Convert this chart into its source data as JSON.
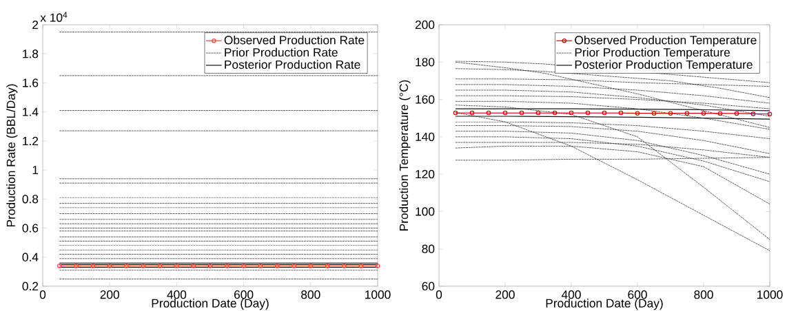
{
  "chart_data": [
    {
      "type": "line",
      "xlabel": "Production Date (Day)",
      "ylabel": "Production Rate (BBL/Day)",
      "annotations": [
        "x 10$^{4}$"
      ],
      "legend": "top right",
      "xlim": [
        0,
        1000
      ],
      "xticks": [
        0,
        200,
        400,
        600,
        800,
        1000
      ],
      "ylim": [
        0.2,
        2
      ],
      "yticks": [
        0.2,
        0.4,
        0.6,
        0.8,
        1,
        1.2,
        1.4,
        1.6,
        1.8,
        2
      ],
      "x": [
        50,
        100,
        150,
        200,
        250,
        300,
        350,
        400,
        450,
        500,
        550,
        600,
        650,
        700,
        750,
        800,
        850,
        900,
        950,
        1000
      ],
      "series": [
        {
          "name": "Observed Production Rate",
          "color": "#ff4040",
          "line_style": "solid",
          "marker": "circle",
          "values": [
            0.34,
            0.34,
            0.34,
            0.34,
            0.34,
            0.34,
            0.34,
            0.34,
            0.34,
            0.34,
            0.34,
            0.34,
            0.34,
            0.34,
            0.34,
            0.34,
            0.34,
            0.34,
            0.34,
            0.34
          ]
        },
        {
          "name": "Prior Production Rate",
          "color": "#333333",
          "line_style": "dotted",
          "marker": "none",
          "x": [
            50,
            1000
          ],
          "values": [
            1.95,
            1.95
          ]
        },
        {
          "color": "#333333",
          "line_style": "dotted",
          "marker": "none",
          "x": [
            50,
            1000
          ],
          "values": [
            1.65,
            1.65
          ]
        },
        {
          "color": "#333333",
          "line_style": "dotted",
          "marker": "none",
          "x": [
            50,
            1000
          ],
          "values": [
            1.41,
            1.41
          ]
        },
        {
          "color": "#333333",
          "line_style": "dotted",
          "marker": "none",
          "x": [
            50,
            1000
          ],
          "values": [
            1.27,
            1.27
          ]
        },
        {
          "color": "#333333",
          "line_style": "dotted",
          "marker": "none",
          "x": [
            50,
            1000
          ],
          "values": [
            0.94,
            0.94
          ]
        },
        {
          "color": "#333333",
          "line_style": "dotted",
          "marker": "none",
          "x": [
            50,
            1000
          ],
          "values": [
            0.91,
            0.91
          ]
        },
        {
          "color": "#333333",
          "line_style": "dotted",
          "marker": "none",
          "x": [
            50,
            1000
          ],
          "values": [
            0.81,
            0.81
          ]
        },
        {
          "color": "#333333",
          "line_style": "dotted",
          "marker": "none",
          "x": [
            50,
            1000
          ],
          "values": [
            0.77,
            0.77
          ]
        },
        {
          "color": "#333333",
          "line_style": "dotted",
          "marker": "none",
          "x": [
            50,
            1000
          ],
          "values": [
            0.74,
            0.74
          ]
        },
        {
          "color": "#333333",
          "line_style": "dotted",
          "marker": "none",
          "x": [
            50,
            1000
          ],
          "values": [
            0.7,
            0.7
          ]
        },
        {
          "color": "#333333",
          "line_style": "dotted",
          "marker": "none",
          "x": [
            50,
            1000
          ],
          "values": [
            0.66,
            0.66
          ]
        },
        {
          "color": "#333333",
          "line_style": "dotted",
          "marker": "none",
          "x": [
            50,
            1000
          ],
          "values": [
            0.63,
            0.63
          ]
        },
        {
          "color": "#333333",
          "line_style": "dotted",
          "marker": "none",
          "x": [
            50,
            1000
          ],
          "values": [
            0.6,
            0.6
          ]
        },
        {
          "color": "#333333",
          "line_style": "dotted",
          "marker": "none",
          "x": [
            50,
            1000
          ],
          "values": [
            0.58,
            0.58
          ]
        },
        {
          "color": "#333333",
          "line_style": "dotted",
          "marker": "none",
          "x": [
            50,
            1000
          ],
          "values": [
            0.54,
            0.54
          ]
        },
        {
          "color": "#333333",
          "line_style": "dotted",
          "marker": "none",
          "x": [
            50,
            1000
          ],
          "values": [
            0.51,
            0.51
          ]
        },
        {
          "color": "#333333",
          "line_style": "dotted",
          "marker": "none",
          "x": [
            50,
            1000
          ],
          "values": [
            0.48,
            0.48
          ]
        },
        {
          "color": "#333333",
          "line_style": "dotted",
          "marker": "none",
          "x": [
            50,
            1000
          ],
          "values": [
            0.45,
            0.45
          ]
        },
        {
          "color": "#333333",
          "line_style": "dotted",
          "marker": "none",
          "x": [
            50,
            1000
          ],
          "values": [
            0.42,
            0.42
          ]
        },
        {
          "color": "#333333",
          "line_style": "dotted",
          "marker": "none",
          "x": [
            50,
            1000
          ],
          "values": [
            0.39,
            0.39
          ]
        },
        {
          "color": "#333333",
          "line_style": "dotted",
          "marker": "none",
          "x": [
            50,
            1000
          ],
          "values": [
            0.31,
            0.31
          ]
        },
        {
          "color": "#333333",
          "line_style": "dotted",
          "marker": "none",
          "x": [
            50,
            1000
          ],
          "values": [
            0.25,
            0.25
          ]
        },
        {
          "name": "Posterior Production Rate",
          "color": "#111111",
          "line_style": "solid",
          "marker": "none",
          "x": [
            50,
            1000
          ],
          "values": [
            0.36,
            0.36
          ]
        },
        {
          "color": "#111111",
          "line_style": "solid",
          "marker": "none",
          "x": [
            50,
            1000
          ],
          "values": [
            0.33,
            0.33
          ]
        },
        {
          "color": "#111111",
          "line_style": "solid",
          "marker": "none",
          "x": [
            50,
            1000
          ],
          "values": [
            0.35,
            0.35
          ]
        }
      ]
    },
    {
      "type": "line",
      "xlabel": "Production Date (Day)",
      "ylabel": "Production Temperature (°C)",
      "legend": "top right",
      "xlim": [
        0,
        1000
      ],
      "xticks": [
        0,
        200,
        400,
        600,
        800,
        1000
      ],
      "ylim": [
        60,
        200
      ],
      "yticks": [
        60,
        80,
        100,
        120,
        140,
        160,
        180,
        200
      ],
      "x": [
        50,
        100,
        150,
        200,
        250,
        300,
        350,
        400,
        450,
        500,
        550,
        600,
        650,
        700,
        750,
        800,
        850,
        900,
        950,
        1000
      ],
      "series": [
        {
          "name": "Observed Production Temperature",
          "color": "#d00000",
          "line_style": "solid",
          "marker": "circle",
          "values": [
            152.8,
            152.8,
            152.8,
            152.8,
            152.8,
            152.8,
            152.8,
            152.8,
            152.8,
            152.8,
            152.8,
            152.6,
            152.6,
            152.6,
            152.6,
            152.6,
            152.5,
            152.5,
            152.3,
            152.2
          ]
        },
        {
          "name": "Prior Production Temperature",
          "color": "#333333",
          "line_style": "dotted",
          "marker": "none",
          "x": [
            50,
            200,
            320,
            1000
          ],
          "values": [
            180.5,
            180,
            179,
            169
          ]
        },
        {
          "color": "#333333",
          "line_style": "dotted",
          "marker": "none",
          "x": [
            50,
            200,
            320,
            600,
            800,
            1000
          ],
          "values": [
            180,
            177,
            174,
            163,
            154,
            145
          ]
        },
        {
          "color": "#333333",
          "line_style": "dotted",
          "marker": "none",
          "x": [
            50,
            200,
            320,
            700,
            850,
            1000
          ],
          "values": [
            176.5,
            176,
            175,
            170,
            166,
            161
          ]
        },
        {
          "color": "#333333",
          "line_style": "dotted",
          "marker": "none",
          "x": [
            50,
            200,
            400,
            600,
            800,
            1000
          ],
          "values": [
            171,
            171,
            170.5,
            169,
            168,
            167
          ]
        },
        {
          "color": "#333333",
          "line_style": "dotted",
          "marker": "none",
          "x": [
            50,
            200,
            400,
            600,
            800,
            1000
          ],
          "values": [
            168,
            168,
            167,
            165,
            162,
            158
          ]
        },
        {
          "color": "#333333",
          "line_style": "dotted",
          "marker": "none",
          "x": [
            50,
            200,
            400,
            600,
            800,
            1000
          ],
          "values": [
            165,
            165,
            164,
            161,
            157,
            151
          ]
        },
        {
          "color": "#333333",
          "line_style": "dotted",
          "marker": "none",
          "x": [
            50,
            200,
            400,
            600,
            800,
            1000
          ],
          "values": [
            162,
            162,
            161.5,
            160,
            158,
            155
          ]
        },
        {
          "color": "#333333",
          "line_style": "dotted",
          "marker": "none",
          "x": [
            50,
            200,
            400,
            600,
            800,
            1000
          ],
          "values": [
            159,
            159,
            158,
            155,
            150,
            144
          ]
        },
        {
          "color": "#333333",
          "line_style": "dotted",
          "marker": "none",
          "x": [
            50,
            200,
            400,
            600,
            800,
            1000
          ],
          "values": [
            148,
            148,
            147.5,
            146,
            143,
            139
          ]
        },
        {
          "color": "#333333",
          "line_style": "dotted",
          "marker": "none",
          "x": [
            50,
            200,
            400,
            600,
            800,
            1000
          ],
          "values": [
            146,
            146,
            145.5,
            143,
            138,
            131
          ]
        },
        {
          "color": "#333333",
          "line_style": "dotted",
          "marker": "none",
          "x": [
            50,
            200,
            400,
            600,
            800,
            1000
          ],
          "values": [
            143,
            143,
            142,
            138,
            130,
            120
          ]
        },
        {
          "color": "#333333",
          "line_style": "dotted",
          "marker": "none",
          "x": [
            50,
            200,
            400,
            600,
            800,
            1000
          ],
          "values": [
            140,
            140,
            139,
            135,
            127,
            116
          ]
        },
        {
          "color": "#333333",
          "line_style": "dotted",
          "marker": "none",
          "x": [
            50,
            200,
            400,
            600,
            800,
            1000
          ],
          "values": [
            137,
            137,
            137,
            136,
            133,
            129
          ]
        },
        {
          "color": "#333333",
          "line_style": "dotted",
          "marker": "none",
          "x": [
            50,
            200,
            400,
            600,
            800,
            1000
          ],
          "values": [
            134,
            135,
            135,
            132,
            124,
            104
          ]
        },
        {
          "color": "#333333",
          "line_style": "dotted",
          "marker": "none",
          "x": [
            50,
            200,
            400,
            600,
            800,
            1000
          ],
          "values": [
            153,
            148,
            135,
            117,
            98,
            79
          ]
        },
        {
          "color": "#333333",
          "line_style": "dotted",
          "marker": "none",
          "x": [
            50,
            200,
            400,
            600,
            800,
            1000
          ],
          "values": [
            157,
            156,
            152,
            140,
            113,
            85
          ]
        },
        {
          "color": "#333333",
          "line_style": "dotted",
          "marker": "none",
          "x": [
            50,
            200,
            400,
            600,
            800,
            1000
          ],
          "values": [
            127.5,
            127.5,
            128,
            128,
            128.5,
            129
          ]
        },
        {
          "name": "Posterior Production Temperature",
          "color": "#111111",
          "line_style": "solid",
          "marker": "none",
          "x": [
            50,
            200,
            400,
            600,
            800,
            1000
          ],
          "values": [
            155,
            155,
            155,
            154.8,
            154.5,
            154
          ]
        },
        {
          "color": "#111111",
          "line_style": "solid",
          "marker": "none",
          "x": [
            50,
            200,
            400,
            600,
            800,
            1000
          ],
          "values": [
            151,
            151,
            150.8,
            150.5,
            150,
            149.5
          ]
        }
      ]
    }
  ]
}
